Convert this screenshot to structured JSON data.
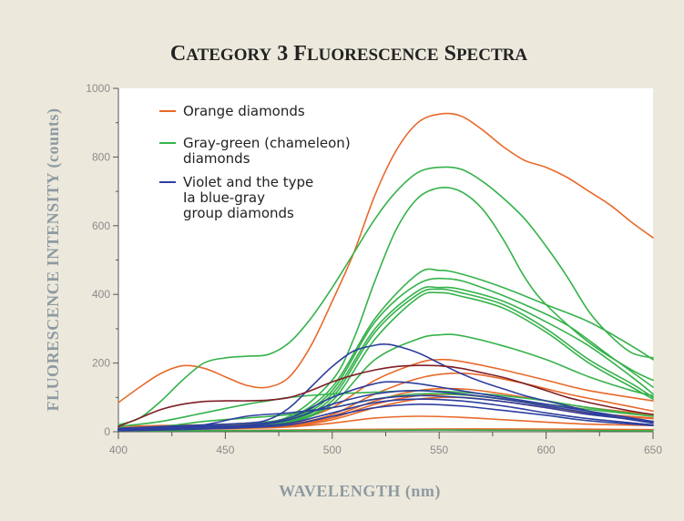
{
  "chart_data": {
    "type": "line",
    "title": "Category 3 Fluorescence Spectra",
    "xlabel": "WAVELENGTH (nm)",
    "ylabel": "FLUORESCENCE INTENSITY (counts)",
    "xlim": [
      400,
      650
    ],
    "ylim": [
      0,
      1000
    ],
    "xticks": [
      400,
      450,
      500,
      550,
      600,
      650
    ],
    "yticks": [
      0,
      200,
      400,
      600,
      800,
      1000
    ],
    "grid": false,
    "legend": {
      "placement": "top-left",
      "entries": [
        {
          "lines": [
            "Orange diamonds"
          ],
          "color": "#e8692a"
        },
        {
          "lines": [
            "Gray-green (chameleon)",
            "diamonds"
          ],
          "color": "#35b24a"
        },
        {
          "lines": [
            "Violet and the type",
            "Ia blue-gray",
            "group diamonds"
          ],
          "color": "#2e3f9e"
        }
      ]
    },
    "series": [
      {
        "group": "orange",
        "color": "#e8692a",
        "x": [
          400,
          410,
          420,
          430,
          440,
          450,
          460,
          470,
          480,
          490,
          500,
          510,
          520,
          530,
          540,
          550,
          560,
          570,
          580,
          590,
          600,
          610,
          620,
          630,
          640,
          650
        ],
        "y": [
          85,
          130,
          170,
          192,
          185,
          160,
          135,
          130,
          160,
          250,
          380,
          520,
          690,
          820,
          900,
          925,
          920,
          880,
          830,
          790,
          770,
          740,
          700,
          660,
          610,
          565
        ]
      },
      {
        "group": "orange",
        "color": "#e8692a",
        "x": [
          400,
          420,
          440,
          460,
          480,
          500,
          520,
          540,
          550,
          560,
          580,
          600,
          620,
          650
        ],
        "y": [
          15,
          18,
          20,
          22,
          30,
          70,
          150,
          200,
          210,
          205,
          180,
          150,
          120,
          90
        ]
      },
      {
        "group": "orange",
        "color": "#e8692a",
        "x": [
          400,
          420,
          440,
          460,
          480,
          500,
          520,
          540,
          555,
          570,
          590,
          610,
          630,
          650
        ],
        "y": [
          10,
          12,
          14,
          16,
          22,
          50,
          110,
          155,
          170,
          165,
          140,
          110,
          85,
          60
        ]
      },
      {
        "group": "orange",
        "color": "#e8692a",
        "x": [
          400,
          420,
          440,
          460,
          480,
          500,
          520,
          540,
          560,
          580,
          600,
          620,
          650
        ],
        "y": [
          8,
          10,
          12,
          14,
          20,
          45,
          90,
          120,
          125,
          110,
          90,
          70,
          50
        ]
      },
      {
        "group": "orange",
        "color": "#e8692a",
        "x": [
          400,
          420,
          440,
          460,
          480,
          500,
          520,
          540,
          560,
          580,
          600,
          620,
          650
        ],
        "y": [
          6,
          8,
          10,
          12,
          18,
          40,
          80,
          105,
          108,
          95,
          75,
          55,
          40
        ]
      },
      {
        "group": "orange",
        "color": "#e8692a",
        "x": [
          400,
          420,
          440,
          460,
          480,
          500,
          520,
          540,
          560,
          580,
          600,
          620,
          650
        ],
        "y": [
          5,
          7,
          9,
          11,
          15,
          35,
          70,
          95,
          100,
          88,
          70,
          52,
          38
        ]
      },
      {
        "group": "orange",
        "color": "#e8692a",
        "x": [
          400,
          420,
          440,
          460,
          480,
          500,
          520,
          540,
          560,
          580,
          600,
          620,
          650
        ],
        "y": [
          5,
          6,
          8,
          10,
          14,
          25,
          40,
          45,
          42,
          35,
          28,
          22,
          18
        ]
      },
      {
        "group": "orange",
        "color": "#e8692a",
        "x": [
          400,
          450,
          500,
          550,
          600,
          650
        ],
        "y": [
          3,
          4,
          6,
          8,
          8,
          6
        ]
      },
      {
        "group": "green",
        "color": "#35b24a",
        "x": [
          400,
          410,
          420,
          430,
          440,
          450,
          460,
          470,
          480,
          490,
          500,
          510,
          520,
          530,
          540,
          550,
          560,
          570,
          580,
          590,
          600,
          610,
          620,
          630,
          640,
          650
        ],
        "y": [
          20,
          40,
          90,
          150,
          200,
          215,
          220,
          225,
          260,
          330,
          420,
          520,
          620,
          700,
          755,
          770,
          765,
          730,
          680,
          620,
          540,
          450,
          350,
          280,
          230,
          215
        ]
      },
      {
        "group": "green",
        "color": "#35b24a",
        "x": [
          400,
          420,
          440,
          460,
          480,
          500,
          510,
          520,
          530,
          540,
          550,
          560,
          570,
          580,
          590,
          600,
          620,
          640,
          650
        ],
        "y": [
          10,
          15,
          20,
          25,
          45,
          150,
          270,
          440,
          590,
          680,
          710,
          700,
          650,
          560,
          450,
          370,
          260,
          180,
          150
        ]
      },
      {
        "group": "green",
        "color": "#35b24a",
        "x": [
          400,
          420,
          440,
          460,
          480,
          500,
          520,
          540,
          550,
          560,
          580,
          600,
          620,
          640,
          650
        ],
        "y": [
          10,
          12,
          15,
          20,
          40,
          130,
          330,
          460,
          470,
          460,
          420,
          370,
          320,
          250,
          210
        ]
      },
      {
        "group": "green",
        "color": "#35b24a",
        "x": [
          400,
          420,
          440,
          460,
          480,
          500,
          520,
          540,
          555,
          570,
          590,
          610,
          630,
          650
        ],
        "y": [
          8,
          10,
          14,
          18,
          35,
          120,
          320,
          430,
          445,
          420,
          370,
          310,
          220,
          130
        ]
      },
      {
        "group": "green",
        "color": "#35b24a",
        "x": [
          400,
          420,
          440,
          460,
          480,
          500,
          520,
          540,
          550,
          560,
          580,
          600,
          620,
          640,
          650
        ],
        "y": [
          8,
          10,
          12,
          16,
          32,
          110,
          300,
          410,
          420,
          415,
          380,
          320,
          250,
          160,
          110
        ]
      },
      {
        "group": "green",
        "color": "#35b24a",
        "x": [
          400,
          420,
          440,
          460,
          480,
          500,
          520,
          540,
          550,
          560,
          580,
          600,
          620,
          640,
          650
        ],
        "y": [
          6,
          9,
          12,
          15,
          30,
          100,
          290,
          400,
          415,
          405,
          370,
          300,
          210,
          140,
          100
        ]
      },
      {
        "group": "green",
        "color": "#35b24a",
        "x": [
          400,
          420,
          440,
          460,
          480,
          500,
          520,
          540,
          550,
          560,
          580,
          600,
          620,
          640,
          650
        ],
        "y": [
          5,
          8,
          10,
          14,
          28,
          90,
          270,
          390,
          405,
          395,
          360,
          290,
          200,
          130,
          95
        ]
      },
      {
        "group": "green",
        "color": "#35b24a",
        "x": [
          400,
          420,
          440,
          460,
          480,
          500,
          520,
          540,
          550,
          560,
          580,
          600,
          620,
          640,
          650
        ],
        "y": [
          5,
          7,
          9,
          12,
          25,
          80,
          210,
          270,
          282,
          280,
          250,
          210,
          160,
          120,
          105
        ]
      },
      {
        "group": "green",
        "color": "#35b24a",
        "x": [
          400,
          420,
          440,
          460,
          470,
          480,
          500,
          520,
          540,
          560,
          580,
          600,
          620,
          650
        ],
        "y": [
          15,
          30,
          55,
          80,
          90,
          100,
          110,
          115,
          120,
          115,
          105,
          90,
          70,
          45
        ]
      },
      {
        "group": "green",
        "color": "#35b24a",
        "x": [
          400,
          420,
          440,
          460,
          480,
          500,
          520,
          540,
          560,
          580,
          600,
          620,
          650
        ],
        "y": [
          8,
          15,
          30,
          40,
          50,
          70,
          95,
          110,
          108,
          95,
          80,
          65,
          45
        ]
      },
      {
        "group": "green",
        "color": "#35b24a",
        "x": [
          400,
          450,
          500,
          550,
          600,
          650
        ],
        "y": [
          3,
          3,
          4,
          5,
          4,
          3
        ]
      },
      {
        "group": "violet",
        "color": "#2e3f9e",
        "x": [
          400,
          420,
          440,
          460,
          470,
          480,
          490,
          500,
          510,
          520,
          525,
          530,
          540,
          550,
          560,
          570,
          580,
          590,
          600,
          610,
          620,
          630,
          640,
          650
        ],
        "y": [
          10,
          15,
          20,
          25,
          35,
          70,
          130,
          190,
          235,
          252,
          255,
          250,
          230,
          200,
          170,
          145,
          125,
          105,
          90,
          75,
          60,
          45,
          35,
          28
        ]
      },
      {
        "group": "violet",
        "color": "#2e3f9e",
        "x": [
          400,
          420,
          440,
          460,
          480,
          500,
          520,
          530,
          540,
          560,
          580,
          600,
          620,
          640,
          650
        ],
        "y": [
          8,
          12,
          16,
          20,
          40,
          100,
          140,
          145,
          140,
          120,
          100,
          80,
          60,
          40,
          30
        ]
      },
      {
        "group": "violet",
        "color": "#2e3f9e",
        "x": [
          400,
          420,
          440,
          460,
          480,
          500,
          520,
          540,
          560,
          580,
          600,
          620,
          640,
          650
        ],
        "y": [
          6,
          10,
          14,
          18,
          35,
          80,
          110,
          120,
          110,
          95,
          75,
          55,
          35,
          25
        ]
      },
      {
        "group": "violet",
        "color": "#2e3f9e",
        "x": [
          400,
          420,
          440,
          460,
          480,
          500,
          520,
          540,
          560,
          580,
          600,
          620,
          650
        ],
        "y": [
          5,
          8,
          20,
          45,
          55,
          70,
          95,
          105,
          100,
          88,
          70,
          50,
          30
        ]
      },
      {
        "group": "violet",
        "color": "#2e3f9e",
        "x": [
          400,
          420,
          440,
          460,
          480,
          500,
          520,
          540,
          560,
          580,
          600,
          620,
          650
        ],
        "y": [
          4,
          6,
          10,
          15,
          25,
          55,
          85,
          95,
          90,
          75,
          55,
          38,
          20
        ]
      },
      {
        "group": "violet",
        "color": "#2e3f9e",
        "x": [
          400,
          420,
          440,
          460,
          480,
          500,
          520,
          540,
          560,
          580,
          600,
          620,
          650
        ],
        "y": [
          3,
          5,
          8,
          12,
          20,
          45,
          70,
          80,
          75,
          62,
          48,
          32,
          18
        ]
      },
      {
        "group": "maroon",
        "color": "#7e1f26",
        "x": [
          400,
          410,
          420,
          430,
          440,
          450,
          460,
          470,
          480,
          490,
          500,
          510,
          520,
          530,
          540,
          550,
          560,
          570,
          580,
          590,
          600,
          610,
          620,
          630,
          640,
          650
        ],
        "y": [
          15,
          40,
          65,
          80,
          88,
          90,
          90,
          92,
          100,
          120,
          145,
          165,
          180,
          190,
          193,
          192,
          185,
          172,
          158,
          140,
          120,
          100,
          85,
          72,
          60,
          50
        ]
      }
    ]
  }
}
